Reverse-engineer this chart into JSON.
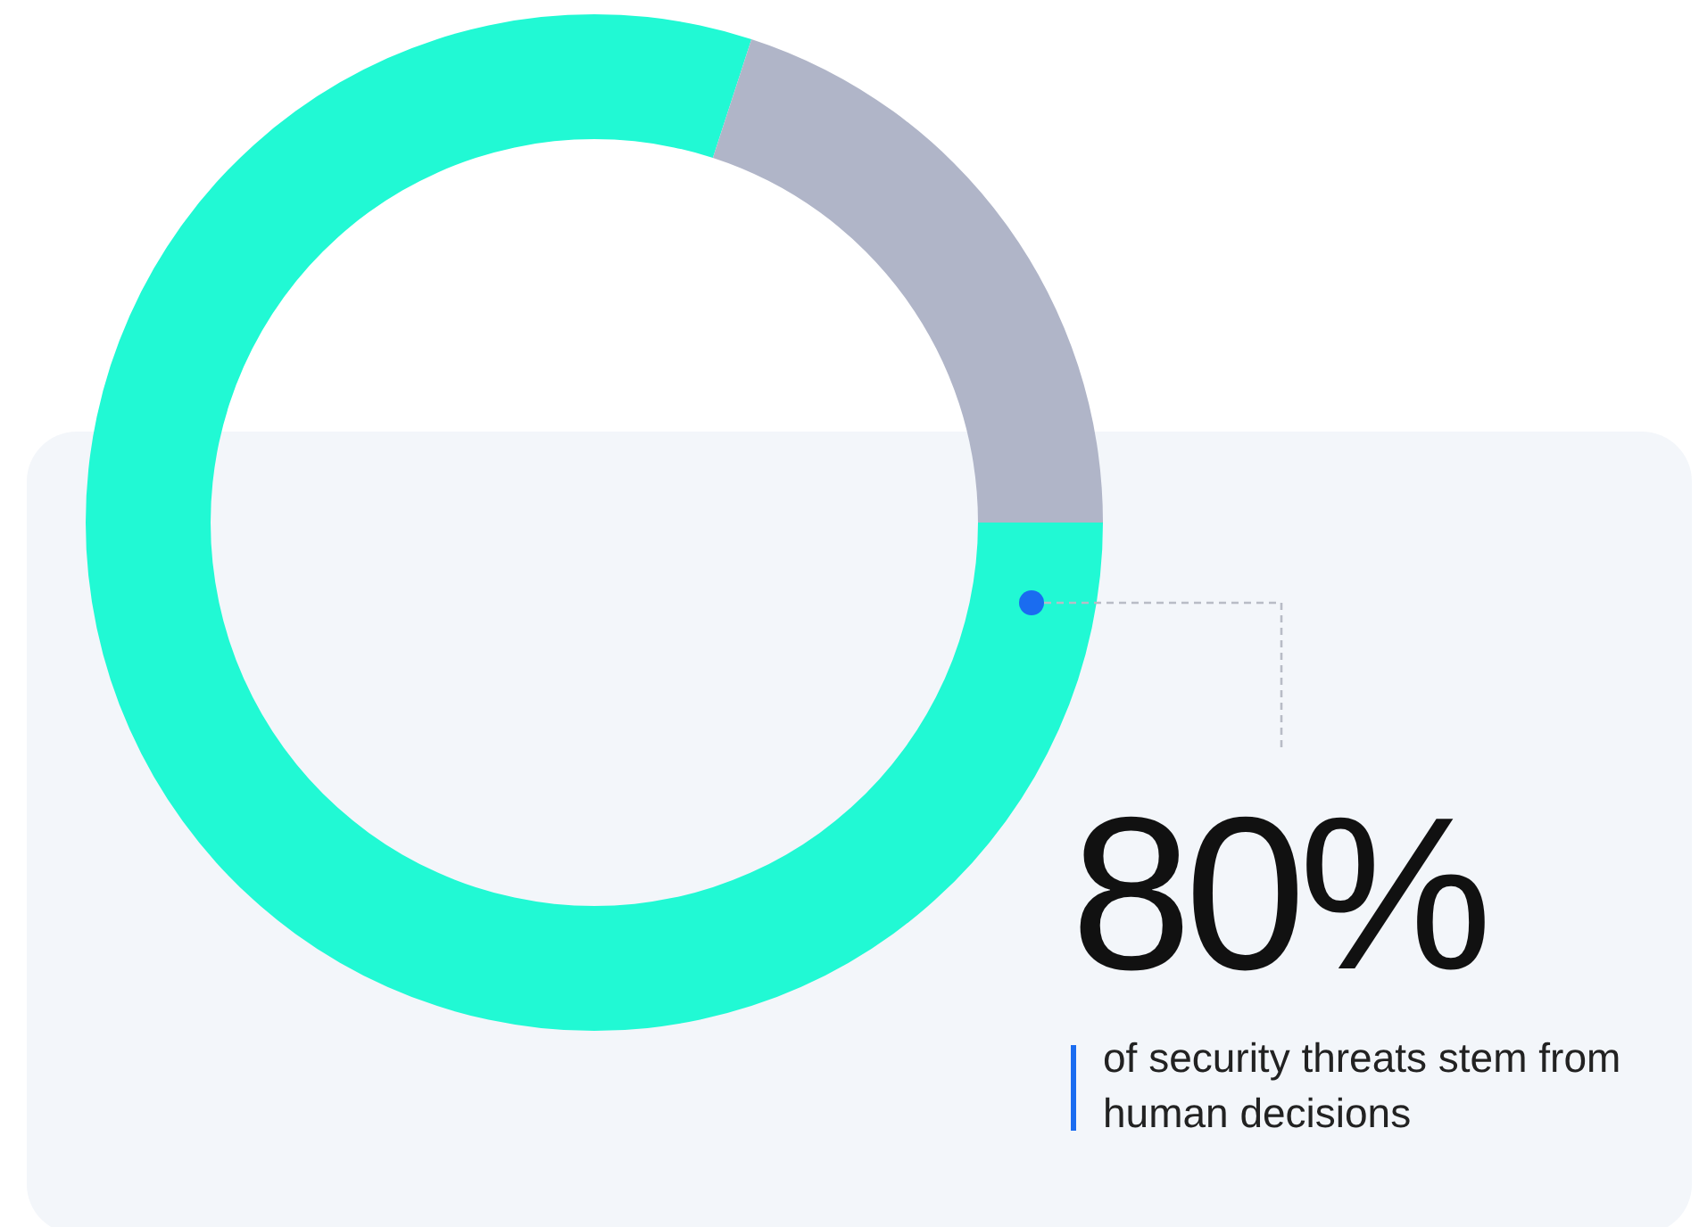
{
  "chart_data": {
    "type": "donut",
    "categories": [
      null,
      null
    ],
    "values": [
      80,
      20
    ],
    "colors": [
      "#21f9d4",
      "#b0b5c8"
    ],
    "annotations": [
      "80%",
      "of security threats stem from human decisions"
    ]
  }
}
